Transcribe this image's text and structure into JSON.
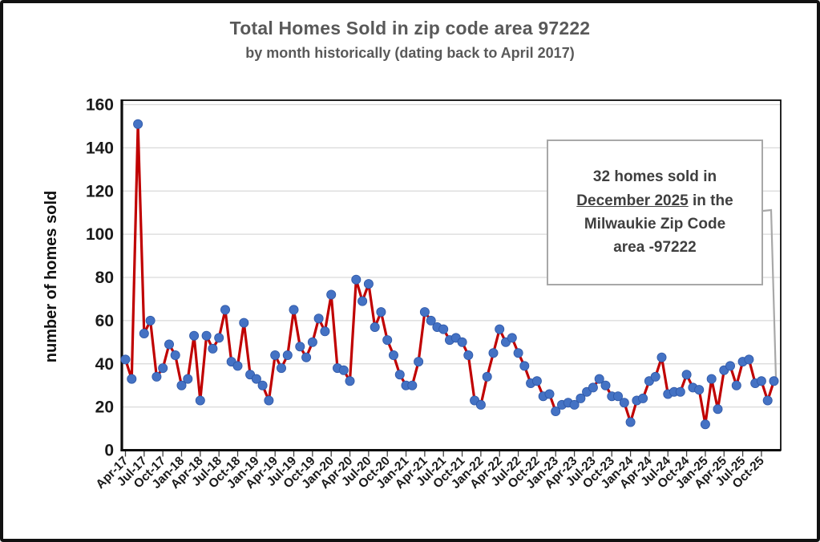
{
  "header": {
    "title": "Total Homes Sold in zip code area 97222",
    "subtitle": "by month historically (dating back to April 2017)"
  },
  "y_axis_title": "number of homes sold",
  "annotation": {
    "line1": "32 homes sold in",
    "line2_underlined": "December 2025",
    "line2_rest": " in the",
    "line3": "Milwaukie Zip Code",
    "line4": "area -97222"
  },
  "chart_data": {
    "type": "line",
    "title": "Total Homes Sold in zip code area 97222",
    "subtitle": "by month historically (dating back to April 2017)",
    "ylabel": "number of homes sold",
    "xlabel": "",
    "ylim": [
      0,
      160
    ],
    "y_ticks": [
      0,
      20,
      40,
      60,
      80,
      100,
      120,
      140,
      160
    ],
    "grid": true,
    "x_label_every": 3,
    "line_color": "#C00000",
    "marker_color": "#4472C4",
    "marker_edge_color": "#2f58a7",
    "grid_color": "#d9d9d9",
    "axis_color": "#0d0d0d",
    "tick_label_color": "#1a1a1a",
    "callout_color": "#a8a8a8",
    "x": [
      "Apr-17",
      "May-17",
      "Jun-17",
      "Jul-17",
      "Aug-17",
      "Sep-17",
      "Oct-17",
      "Nov-17",
      "Dec-17",
      "Jan-18",
      "Feb-18",
      "Mar-18",
      "Apr-18",
      "May-18",
      "Jun-18",
      "Jul-18",
      "Aug-18",
      "Sep-18",
      "Oct-18",
      "Nov-18",
      "Dec-18",
      "Jan-19",
      "Feb-19",
      "Mar-19",
      "Apr-19",
      "May-19",
      "Jun-19",
      "Jul-19",
      "Aug-19",
      "Sep-19",
      "Oct-19",
      "Nov-19",
      "Dec-19",
      "Jan-20",
      "Feb-20",
      "Mar-20",
      "Apr-20",
      "May-20",
      "Jun-20",
      "Jul-20",
      "Aug-20",
      "Sep-20",
      "Oct-20",
      "Nov-20",
      "Dec-20",
      "Jan-21",
      "Feb-21",
      "Mar-21",
      "Apr-21",
      "May-21",
      "Jun-21",
      "Jul-21",
      "Aug-21",
      "Sep-21",
      "Oct-21",
      "Nov-21",
      "Dec-21",
      "Jan-22",
      "Feb-22",
      "Mar-22",
      "Apr-22",
      "May-22",
      "Jun-22",
      "Jul-22",
      "Aug-22",
      "Sep-22",
      "Oct-22",
      "Nov-22",
      "Dec-22",
      "Jan-23",
      "Feb-23",
      "Mar-23",
      "Apr-23",
      "May-23",
      "Jun-23",
      "Jul-23",
      "Aug-23",
      "Sep-23",
      "Oct-23",
      "Nov-23",
      "Dec-23",
      "Jan-24",
      "Feb-24",
      "Mar-24",
      "Apr-24",
      "May-24",
      "Jun-24",
      "Jul-24",
      "Aug-24",
      "Sep-24",
      "Oct-24",
      "Nov-24",
      "Dec-24",
      "Jan-25",
      "Feb-25",
      "Mar-25",
      "Apr-25",
      "May-25",
      "Jun-25",
      "Jul-25",
      "Aug-25",
      "Sep-25",
      "Oct-25",
      "Nov-25",
      "Dec-25"
    ],
    "values": [
      42,
      33,
      151,
      54,
      60,
      34,
      38,
      49,
      44,
      30,
      33,
      53,
      23,
      53,
      47,
      52,
      65,
      41,
      39,
      59,
      35,
      33,
      30,
      23,
      44,
      38,
      44,
      65,
      48,
      43,
      50,
      61,
      55,
      72,
      38,
      37,
      32,
      79,
      69,
      77,
      57,
      64,
      51,
      44,
      35,
      30,
      30,
      41,
      64,
      60,
      57,
      56,
      51,
      52,
      50,
      44,
      23,
      21,
      34,
      45,
      56,
      50,
      52,
      45,
      39,
      31,
      32,
      25,
      26,
      18,
      21,
      22,
      21,
      24,
      27,
      29,
      33,
      30,
      25,
      25,
      22,
      13,
      23,
      24,
      32,
      34,
      43,
      26,
      27,
      27,
      35,
      29,
      28,
      12,
      33,
      19,
      37,
      39,
      30,
      41,
      42,
      31,
      32,
      23,
      32
    ],
    "last_value_label": "32"
  }
}
